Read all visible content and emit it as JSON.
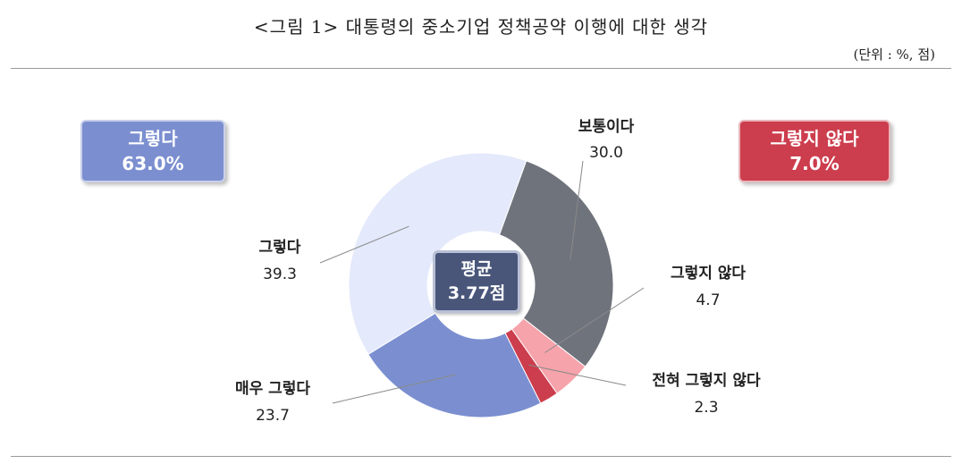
{
  "page": {
    "title": "<그림 1> 대통령의 중소기업 정책공약 이행에 대한 생각",
    "unit_note": "(단위 : %, 점)"
  },
  "summary": {
    "agree": {
      "label": "그렇다",
      "value": "63.0%",
      "color": "#7b8fd0"
    },
    "disagree": {
      "label": "그렇지 않다",
      "value": "7.0%",
      "color": "#cc3d4d"
    }
  },
  "center": {
    "label": "평균",
    "value": "3.77점",
    "color": "#49567a"
  },
  "chart_data": {
    "type": "pie",
    "donut": true,
    "start_angle_deg": 20,
    "direction": "clockwise",
    "slices": [
      {
        "name": "보통이다",
        "value": 30.0,
        "display": "30.0",
        "color": "#6f737c"
      },
      {
        "name": "그렇지 않다",
        "value": 4.7,
        "display": "4.7",
        "color": "#f6a3ab"
      },
      {
        "name": "전혀 그렇지 않다",
        "value": 2.3,
        "display": "2.3",
        "color": "#cc3d4d"
      },
      {
        "name": "매우 그렇다",
        "value": 23.7,
        "display": "23.7",
        "color": "#7b8fd0"
      },
      {
        "name": "그렇다",
        "value": 39.3,
        "display": "39.3",
        "color": "#e4e9fb"
      }
    ]
  }
}
